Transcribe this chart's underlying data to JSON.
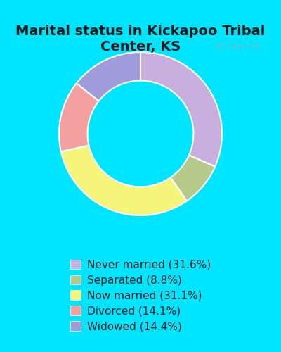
{
  "title": "Marital status in Kickapoo Tribal\nCenter, KS",
  "slices": [
    {
      "label": "Never married (31.6%)",
      "value": 31.6,
      "color": "#c9aee0"
    },
    {
      "label": "Separated (8.8%)",
      "value": 8.8,
      "color": "#b5c98a"
    },
    {
      "label": "Now married (31.1%)",
      "value": 31.1,
      "color": "#f5f579"
    },
    {
      "label": "Divorced (14.1%)",
      "value": 14.1,
      "color": "#f5a0a0"
    },
    {
      "label": "Widowed (14.4%)",
      "value": 14.4,
      "color": "#a09cdc"
    }
  ],
  "bg_outer": "#00e5ff",
  "bg_chart": "#cde0cd",
  "title_color": "#1a1a1a",
  "title_fontsize": 14,
  "legend_fontsize": 11,
  "donut_width": 0.35,
  "watermark": "City-Data.com"
}
